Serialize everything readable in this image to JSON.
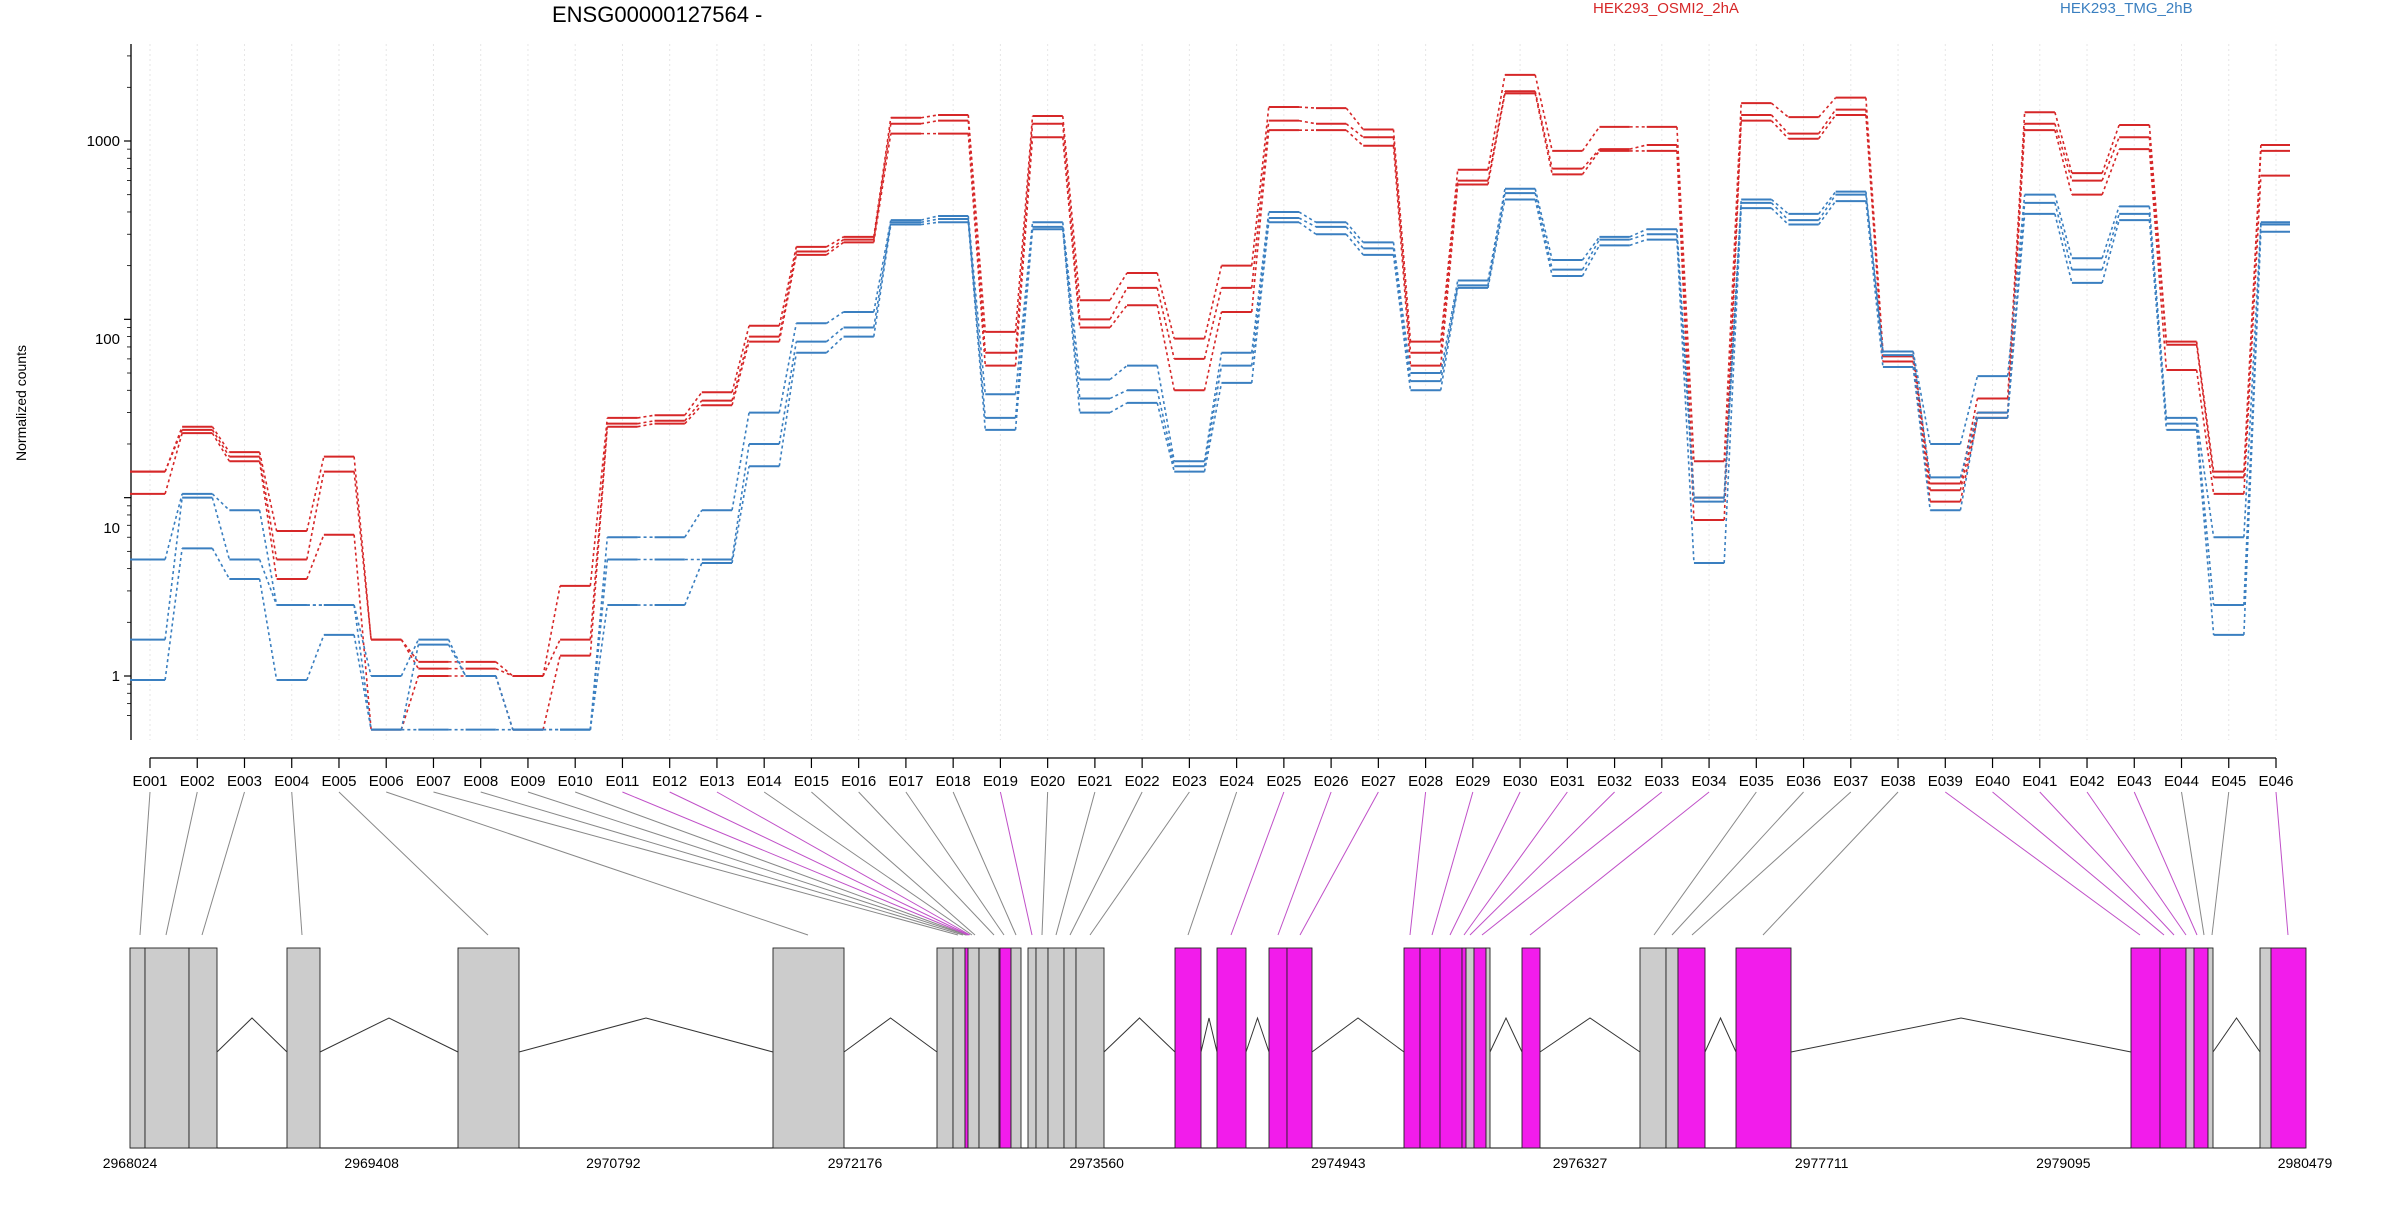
{
  "chart_data": {
    "type": "line",
    "title": "ENSG00000127564 -",
    "ylabel": "Normalized counts",
    "y_scale": "log",
    "ylim": [
      0.55,
      3200
    ],
    "grid": "vertical-dotted",
    "legend_placement": "top-right",
    "y_ticks": [
      {
        "value": 1,
        "label": "1"
      },
      {
        "value": 10,
        "label": "10"
      },
      {
        "value": 100,
        "label": "100"
      },
      {
        "value": 1000,
        "label": "1000"
      }
    ],
    "categories": [
      "E001",
      "E002",
      "E003",
      "E004",
      "E005",
      "E006",
      "E007",
      "E008",
      "E009",
      "E010",
      "E011",
      "E012",
      "E013",
      "E014",
      "E015",
      "E016",
      "E017",
      "E018",
      "E019",
      "E020",
      "E021",
      "E022",
      "E023",
      "E024",
      "E025",
      "E026",
      "E027",
      "E028",
      "E029",
      "E030",
      "E031",
      "E032",
      "E033",
      "E034",
      "E035",
      "E036",
      "E037",
      "E038",
      "E039",
      "E040",
      "E041",
      "E042",
      "E043",
      "E044",
      "E045",
      "E046"
    ],
    "groups": [
      {
        "name": "HEK293_OSMI2_2hA",
        "color": "#d62728"
      },
      {
        "name": "HEK293_TMG_2hB",
        "color": "#3a7fc0"
      }
    ],
    "series": [
      {
        "group": 0,
        "values": [
          14,
          25,
          18,
          6.5,
          17,
          1.6,
          1.2,
          1.2,
          1,
          3.2,
          28,
          29,
          39,
          92,
          255,
          290,
          1350,
          1400,
          85,
          1380,
          128,
          182,
          78,
          200,
          1550,
          1530,
          1160,
          75,
          690,
          2350,
          880,
          1200,
          1200,
          16,
          1630,
          1360,
          1750,
          66,
          12,
          36,
          1450,
          660,
          1230,
          75,
          14,
          950
        ]
      },
      {
        "group": 0,
        "values": [
          14,
          24,
          17,
          4.5,
          14,
          1.6,
          1.1,
          1.1,
          1,
          1.6,
          26,
          27,
          35,
          80,
          240,
          280,
          1250,
          1300,
          65,
          1250,
          100,
          150,
          60,
          150,
          1300,
          1250,
          1050,
          65,
          600,
          1900,
          700,
          900,
          950,
          10,
          1400,
          1100,
          1500,
          62,
          11,
          30,
          1250,
          600,
          1050,
          72,
          13,
          880
        ]
      },
      {
        "group": 0,
        "values": [
          10.5,
          23,
          16,
          3.5,
          6.2,
          0.5,
          1,
          1,
          0.5,
          1.3,
          25,
          26,
          33,
          75,
          230,
          270,
          1100,
          1100,
          55,
          1050,
          90,
          120,
          40,
          110,
          1150,
          1150,
          940,
          55,
          570,
          1850,
          650,
          880,
          880,
          7.5,
          1300,
          1030,
          1400,
          58,
          9.5,
          28,
          1150,
          500,
          900,
          52,
          10.5,
          640
        ]
      },
      {
        "group": 1,
        "values": [
          4.5,
          10.5,
          8.5,
          2.5,
          2.5,
          1,
          1.6,
          1,
          0.5,
          0.5,
          6,
          6,
          8.5,
          30,
          95,
          110,
          360,
          380,
          38,
          350,
          46,
          55,
          16,
          65,
          400,
          350,
          270,
          50,
          165,
          540,
          215,
          290,
          320,
          10,
          470,
          390,
          520,
          66,
          20,
          48,
          500,
          220,
          430,
          28,
          6,
          350
        ]
      },
      {
        "group": 1,
        "values": [
          1.6,
          10,
          4.5,
          2.5,
          2.5,
          0.5,
          1.5,
          1,
          0.5,
          0.5,
          4.5,
          4.5,
          4.5,
          20,
          75,
          90,
          350,
          365,
          28,
          330,
          36,
          40,
          15,
          55,
          370,
          330,
          250,
          45,
          155,
          510,
          190,
          280,
          300,
          9.5,
          450,
          360,
          500,
          63,
          13,
          30,
          450,
          190,
          390,
          26,
          2.5,
          340
        ]
      },
      {
        "group": 1,
        "values": [
          0.95,
          5.2,
          3.5,
          0.95,
          1.7,
          0.5,
          0.5,
          0.5,
          0.5,
          0.5,
          2.5,
          2.5,
          4.3,
          15,
          65,
          80,
          340,
          350,
          24,
          320,
          30,
          34,
          14,
          44,
          350,
          300,
          230,
          40,
          150,
          470,
          175,
          260,
          280,
          4.3,
          420,
          340,
          460,
          54,
          8.5,
          28,
          390,
          160,
          360,
          24,
          1.7,
          310
        ]
      }
    ],
    "genomic_axis_ticks": [
      "2968024",
      "2969408",
      "2970792",
      "2972176",
      "2973560",
      "2974943",
      "2976327",
      "2977711",
      "2979095",
      "2980479"
    ],
    "gene_model": {
      "gray_color": "#cccccc",
      "highlight_color": "#f21ceb",
      "highlighted_exons": [
        "E011",
        "E012",
        "E013",
        "E019",
        "E025",
        "E026",
        "E027",
        "E028",
        "E029",
        "E030",
        "E031",
        "E032",
        "E033",
        "E034",
        "E039",
        "E040",
        "E041",
        "E042",
        "E043",
        "E046"
      ]
    }
  }
}
